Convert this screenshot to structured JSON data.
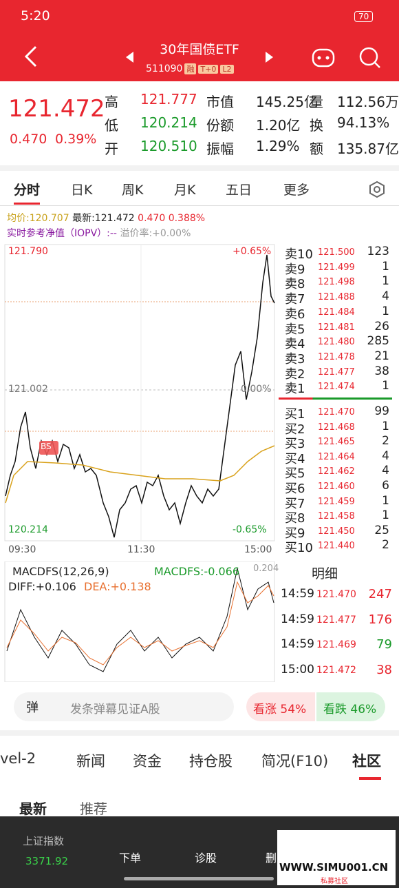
{
  "status": {
    "time": "5:20",
    "battery": "70"
  },
  "header": {
    "title": "30年国债ETF",
    "code": "511090",
    "tags": [
      "融",
      "T+0",
      "L2"
    ]
  },
  "quote": {
    "price": "121.472",
    "change": "0.470",
    "pct": "0.39%",
    "stats": [
      [
        "高",
        "121.777",
        "市值",
        "145.25亿",
        "量",
        "112.56万"
      ],
      [
        "低",
        "120.214",
        "份额",
        "1.20亿",
        "换",
        "94.13%"
      ],
      [
        "开",
        "120.510",
        "振幅",
        "1.29%",
        "额",
        "135.87亿"
      ]
    ]
  },
  "tabs": [
    "分时",
    "日K",
    "周K",
    "月K",
    "五日",
    "更多"
  ],
  "info": {
    "avg": "均价:120.707",
    "latest": "最新:121.472",
    "change": "0.470",
    "pct": "0.388%",
    "iopv": "实时参考净值（IOPV）:--",
    "premium": "溢价率:+0.00%"
  },
  "chart": {
    "high": "121.790",
    "high_pct": "+0.65%",
    "mid": "121.002",
    "mid_pct": "0.00%",
    "low": "120.214",
    "low_pct": "-0.65%",
    "times": [
      "09:30",
      "11:30",
      "15:00"
    ],
    "bs": "BS"
  },
  "asks": [
    [
      "卖10",
      "121.500",
      "123"
    ],
    [
      "卖9",
      "121.499",
      "1"
    ],
    [
      "卖8",
      "121.498",
      "1"
    ],
    [
      "卖7",
      "121.488",
      "4"
    ],
    [
      "卖6",
      "121.484",
      "1"
    ],
    [
      "卖5",
      "121.481",
      "26"
    ],
    [
      "卖4",
      "121.480",
      "285"
    ],
    [
      "卖3",
      "121.478",
      "21"
    ],
    [
      "卖2",
      "121.477",
      "38"
    ],
    [
      "卖1",
      "121.474",
      "1"
    ]
  ],
  "bids": [
    [
      "买1",
      "121.470",
      "99"
    ],
    [
      "买2",
      "121.468",
      "1"
    ],
    [
      "买3",
      "121.465",
      "2"
    ],
    [
      "买4",
      "121.464",
      "4"
    ],
    [
      "买5",
      "121.462",
      "4"
    ],
    [
      "买6",
      "121.460",
      "6"
    ],
    [
      "买7",
      "121.459",
      "1"
    ],
    [
      "买8",
      "121.458",
      "1"
    ],
    [
      "买9",
      "121.450",
      "25"
    ],
    [
      "买10",
      "121.440",
      "2"
    ]
  ],
  "macd": {
    "name": "MACDFS(12,26,9)",
    "value": "MACDFS:-0.066",
    "top": "0.204",
    "diff": "DIFF:+0.106",
    "dea": "DEA:+0.138"
  },
  "detail": {
    "title": "明细",
    "trades": [
      [
        "14:59",
        "121.470",
        "247"
      ],
      [
        "14:59",
        "121.477",
        "176"
      ],
      [
        "14:59",
        "121.469",
        "79"
      ],
      [
        "15:00",
        "121.472",
        "38"
      ]
    ]
  },
  "social": {
    "danmu_icon": "弹",
    "danmu": "发条弹幕见证A股",
    "up": "看涨 54%",
    "down": "看跌 46%"
  },
  "nav": [
    "vel-2",
    "新闻",
    "资金",
    "持仓股",
    "简况(F10)",
    "社区"
  ],
  "subtabs": [
    "最新",
    "推荐"
  ],
  "bottom": {
    "index_name": "上证指数",
    "index_value": "3371.92",
    "order": "下单",
    "diagnose": "诊股",
    "more": "删"
  },
  "watermark": {
    "site": "WWW.SIMU001.CN",
    "name": "私募社区"
  }
}
